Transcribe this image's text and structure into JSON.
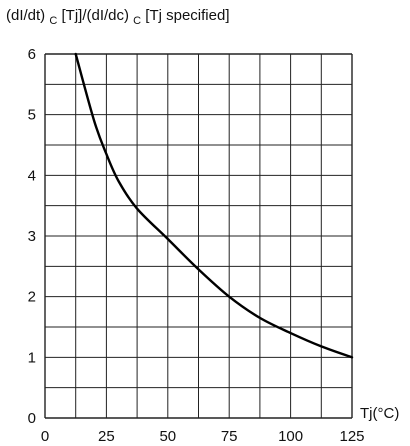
{
  "chart_data": {
    "type": "line",
    "title": "",
    "ylabel": {
      "part1": "(dI/dt)",
      "sub1": "C",
      "part2": " [Tj]/(dI/dc)",
      "sub2": "C",
      "part3": " [Tj specified]"
    },
    "xlabel": "Tj(°C)",
    "xlim": [
      0,
      125
    ],
    "ylim": [
      0,
      6
    ],
    "grid": true,
    "x_ticks": [
      0,
      25,
      50,
      75,
      100,
      125
    ],
    "y_ticks": [
      0,
      1,
      2,
      3,
      4,
      5,
      6
    ],
    "x_tick_labels": [
      "0",
      "25",
      "50",
      "75",
      "100",
      "125"
    ],
    "y_tick_labels": [
      "0",
      "1",
      "2",
      "3",
      "4",
      "5",
      "6"
    ],
    "series": [
      {
        "x": [
          12.5,
          20,
          25,
          30,
          37.5,
          50,
          62.5,
          75,
          87.5,
          100,
          112.5,
          125
        ],
        "y": [
          6.0,
          4.9,
          4.35,
          3.9,
          3.45,
          2.95,
          2.45,
          2.0,
          1.65,
          1.4,
          1.18,
          1.0
        ]
      }
    ],
    "colors": {
      "grid": "#222222",
      "curve": "#000000",
      "text": "#111111"
    }
  }
}
